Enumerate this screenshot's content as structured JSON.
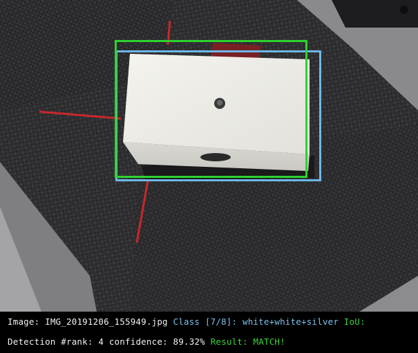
{
  "image_viewer": {
    "caption": {
      "line1": {
        "image_label": "Image:",
        "image_filename": "IMG_20191206_155949.jpg",
        "class_label": "Class [7/8]:",
        "class_value": "white+white+silver",
        "iou_label": "IoU:"
      },
      "line2": {
        "detection_label": "Detection #rank:",
        "rank_value": "4",
        "confidence_label": "confidence:",
        "confidence_value": "89.32%",
        "result_label": "Result:",
        "result_value": "MATCH!"
      }
    },
    "boxes": {
      "ground_truth_color": "#6fb7e8",
      "prediction_color": "#2ed32e"
    },
    "colors": {
      "caption_text": "#f2f2f2",
      "class_text": "#7cc2ee",
      "result_text": "#39d639",
      "background": "#000000"
    }
  }
}
